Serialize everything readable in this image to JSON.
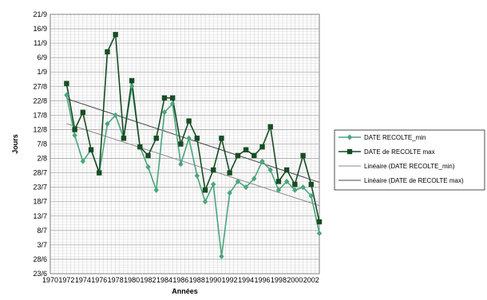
{
  "chart_data": {
    "type": "line",
    "xlabel": "Années",
    "ylabel": "Jours",
    "x_ticks": [
      "1970",
      "1972",
      "1974",
      "1976",
      "1978",
      "1980",
      "1982",
      "1984",
      "1986",
      "1988",
      "1990",
      "1992",
      "1994",
      "1996",
      "1998",
      "2000",
      "2002"
    ],
    "y_ticks": [
      "23/6",
      "28/6",
      "3/7",
      "8/7",
      "13/7",
      "18/7",
      "23/7",
      "28/7",
      "2/8",
      "7/8",
      "12/8",
      "17/8",
      "22/8",
      "27/8",
      "1/9",
      "6/9",
      "11/9",
      "16/9",
      "21/9"
    ],
    "x_range": [
      1970,
      2003
    ],
    "y_range_days_after_first_tick": [
      0,
      90
    ],
    "grid": true,
    "legend_position": "right",
    "series": [
      {
        "name": "DATE RECOLTE_min",
        "color": "#4aa57c",
        "marker": "diamond",
        "x": [
          1972,
          1973,
          1974,
          1975,
          1976,
          1977,
          1978,
          1979,
          1980,
          1981,
          1982,
          1983,
          1984,
          1985,
          1986,
          1987,
          1988,
          1989,
          1990,
          1991,
          1992,
          1993,
          1994,
          1995,
          1996,
          1997,
          1998,
          1999,
          2000,
          2001,
          2002,
          2003
        ],
        "y": [
          "24/8",
          "10/8",
          "1/8",
          "5/8",
          "28/7",
          "14/8",
          "17/8",
          "9/8",
          "27/8",
          "6/8",
          "30/7",
          "22/7",
          "18/8",
          "21/8",
          "31/7",
          "9/8",
          "27/7",
          "18/7",
          "24/7",
          "29/6",
          "21/7",
          "25/7",
          "23/7",
          "26/7",
          "1/8",
          "29/7",
          "22/7",
          "25/7",
          "22/7",
          "23/7",
          "20/7",
          "7/7"
        ]
      },
      {
        "name": "DATE de RECOLTE max",
        "color": "#174c23",
        "marker": "square",
        "x": [
          1972,
          1973,
          1974,
          1975,
          1976,
          1977,
          1978,
          1979,
          1980,
          1981,
          1982,
          1983,
          1984,
          1985,
          1986,
          1987,
          1988,
          1989,
          1990,
          1991,
          1992,
          1993,
          1994,
          1995,
          1996,
          1997,
          1998,
          1999,
          2000,
          2001,
          2002,
          2003
        ],
        "y": [
          "28/8",
          "12/8",
          "18/8",
          "5/8",
          "28/7",
          "8/9",
          "14/9",
          "9/8",
          "29/8",
          "6/8",
          "3/8",
          "9/8",
          "23/8",
          "23/8",
          "7/8",
          "15/8",
          "9/8",
          "22/7",
          "29/7",
          "9/8",
          "28/7",
          "3/8",
          "5/8",
          "3/8",
          "6/8",
          "13/8",
          "25/7",
          "29/7",
          "24/7",
          "3/8",
          "24/7",
          "11/7"
        ]
      },
      {
        "name": "Linéaire (DATE RECOLTE_min)",
        "color": "#8a8a8a",
        "trend_of": "DATE RECOLTE_min"
      },
      {
        "name": "Linéaire (DATE de RECOLTE max)",
        "color": "#4a4a4a",
        "trend_of": "DATE de RECOLTE max"
      }
    ]
  }
}
